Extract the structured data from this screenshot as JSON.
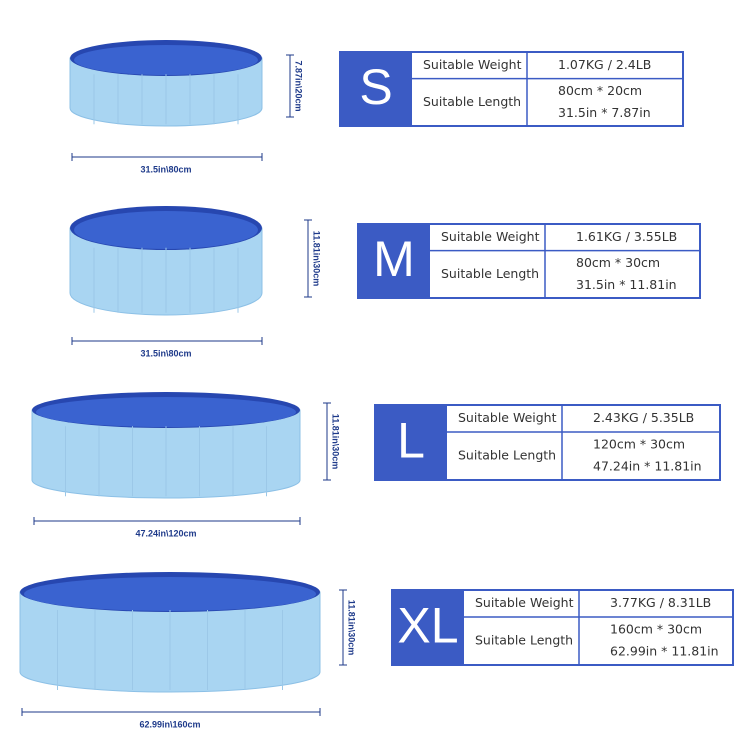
{
  "sizes": [
    {
      "size": "S",
      "height_label": "7.87in\\20cm",
      "width_label": "31.5in\\80cm",
      "weight_label": "Suitable Weight",
      "weight": "1.07KG / 2.4LB",
      "length_label": "Suitable Length",
      "length": [
        "80cm * 20cm",
        "31.5in * 7.87in"
      ]
    },
    {
      "size": "M",
      "height_label": "11.81in\\30cm",
      "width_label": "31.5in\\80cm",
      "weight_label": "Suitable Weight",
      "weight": "1.61KG / 3.55LB",
      "length_label": "Suitable Length",
      "length": [
        "80cm  * 30cm",
        "31.5in * 11.81in"
      ]
    },
    {
      "size": "L",
      "height_label": "11.81in\\30cm",
      "width_label": "47.24in\\120cm",
      "weight_label": "Suitable Weight",
      "weight": "2.43KG / 5.35LB",
      "length_label": "Suitable Length",
      "length": [
        "120cm *  30cm",
        "47.24in * 11.81in"
      ]
    },
    {
      "size": "XL",
      "height_label": "11.81in\\30cm",
      "width_label": "62.99in\\160cm",
      "weight_label": "Suitable Weight",
      "weight": "3.77KG / 8.31LB",
      "length_label": "Suitable Length",
      "length": [
        "160cm * 30cm",
        "62.99in * 11.81in"
      ]
    }
  ]
}
